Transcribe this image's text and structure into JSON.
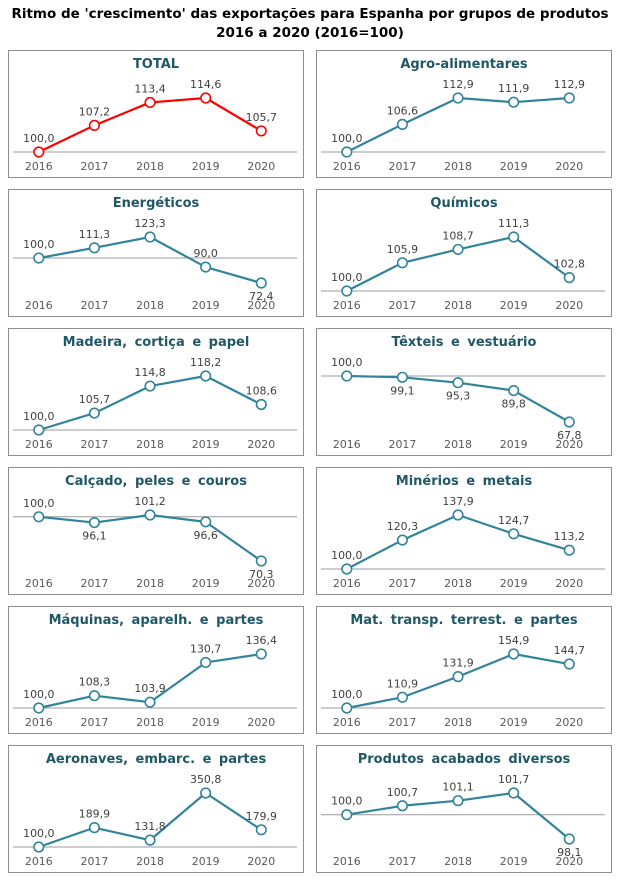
{
  "page_title": {
    "line1": "Ritmo de 'crescimento' das exportações para Espanha por grupos de produtos",
    "line2": "2016 a 2020 (2016=100)"
  },
  "colors": {
    "total_line": "#ff0000",
    "series_line": "#31849b",
    "marker_fill": "#ffffff",
    "chart_title": "#205867",
    "data_label": "#3f3f3f",
    "axis_label": "#595959",
    "axis_line": "#9b9b9b",
    "card_border": "#8e8e8e"
  },
  "x_axis_years": [
    "2016",
    "2017",
    "2018",
    "2019",
    "2020"
  ],
  "baseline_value": 100,
  "chart_data": [
    {
      "id": "total",
      "type": "line",
      "title": "TOTAL",
      "line_color": "#ff0000",
      "categories": [
        "2016",
        "2017",
        "2018",
        "2019",
        "2020"
      ],
      "values": [
        100.0,
        107.2,
        113.4,
        114.6,
        105.7
      ],
      "labels": [
        "100,0",
        "107,2",
        "113,4",
        "114,6",
        "105,7"
      ],
      "label_positions": [
        "above",
        "above",
        "above",
        "above",
        "above"
      ],
      "baseline": 100
    },
    {
      "id": "agro-alimentares",
      "type": "line",
      "title": "Agro-alimentares",
      "line_color": "#31849b",
      "categories": [
        "2016",
        "2017",
        "2018",
        "2019",
        "2020"
      ],
      "values": [
        100.0,
        106.6,
        112.9,
        111.9,
        112.9
      ],
      "labels": [
        "100,0",
        "106,6",
        "112,9",
        "111,9",
        "112,9"
      ],
      "label_positions": [
        "above",
        "above",
        "above",
        "above",
        "above"
      ],
      "baseline": 100
    },
    {
      "id": "energeticos",
      "type": "line",
      "title": "Energéticos",
      "line_color": "#31849b",
      "categories": [
        "2016",
        "2017",
        "2018",
        "2019",
        "2020"
      ],
      "values": [
        100.0,
        111.3,
        123.3,
        90.0,
        72.4
      ],
      "labels": [
        "100,0",
        "111,3",
        "123,3",
        "90,0",
        "72,4"
      ],
      "label_positions": [
        "above",
        "above",
        "above",
        "above",
        "below"
      ],
      "baseline": 100
    },
    {
      "id": "quimicos",
      "type": "line",
      "title": "Químicos",
      "line_color": "#31849b",
      "categories": [
        "2016",
        "2017",
        "2018",
        "2019",
        "2020"
      ],
      "values": [
        100.0,
        105.9,
        108.7,
        111.3,
        102.8
      ],
      "labels": [
        "100,0",
        "105,9",
        "108,7",
        "111,3",
        "102,8"
      ],
      "label_positions": [
        "above",
        "above",
        "above",
        "above",
        "above"
      ],
      "baseline": 100
    },
    {
      "id": "madeira-cortica-papel",
      "type": "line",
      "title": "Madeira, cortiça e papel",
      "line_color": "#31849b",
      "categories": [
        "2016",
        "2017",
        "2018",
        "2019",
        "2020"
      ],
      "values": [
        100.0,
        105.7,
        114.8,
        118.2,
        108.6
      ],
      "labels": [
        "100,0",
        "105,7",
        "114,8",
        "118,2",
        "108,6"
      ],
      "label_positions": [
        "above",
        "above",
        "above",
        "above",
        "above"
      ],
      "baseline": 100
    },
    {
      "id": "texteis-vestuario",
      "type": "line",
      "title": "Têxteis e vestuário",
      "line_color": "#31849b",
      "categories": [
        "2016",
        "2017",
        "2018",
        "2019",
        "2020"
      ],
      "values": [
        100.0,
        99.1,
        95.3,
        89.8,
        67.8
      ],
      "labels": [
        "100,0",
        "99,1",
        "95,3",
        "89,8",
        "67,8"
      ],
      "label_positions": [
        "above",
        "below",
        "below",
        "below",
        "below"
      ],
      "baseline": 100
    },
    {
      "id": "calcado-peles-couros",
      "type": "line",
      "title": "Calçado, peles e couros",
      "line_color": "#31849b",
      "categories": [
        "2016",
        "2017",
        "2018",
        "2019",
        "2020"
      ],
      "values": [
        100.0,
        96.1,
        101.2,
        96.6,
        70.3
      ],
      "labels": [
        "100,0",
        "96,1",
        "101,2",
        "96,6",
        "70,3"
      ],
      "label_positions": [
        "above",
        "below",
        "above",
        "below",
        "below"
      ],
      "baseline": 100
    },
    {
      "id": "minerios-metais",
      "type": "line",
      "title": "Minérios e metais",
      "line_color": "#31849b",
      "categories": [
        "2016",
        "2017",
        "2018",
        "2019",
        "2020"
      ],
      "values": [
        100.0,
        120.3,
        137.9,
        124.7,
        113.2
      ],
      "labels": [
        "100,0",
        "120,3",
        "137,9",
        "124,7",
        "113,2"
      ],
      "label_positions": [
        "above",
        "above",
        "above",
        "above",
        "above"
      ],
      "baseline": 100
    },
    {
      "id": "maquinas-aparelh-partes",
      "type": "line",
      "title": "Máquinas, aparelh. e partes",
      "line_color": "#31849b",
      "categories": [
        "2016",
        "2017",
        "2018",
        "2019",
        "2020"
      ],
      "values": [
        100.0,
        108.3,
        103.9,
        130.7,
        136.4
      ],
      "labels": [
        "100,0",
        "108,3",
        "103,9",
        "130,7",
        "136,4"
      ],
      "label_positions": [
        "above",
        "above",
        "above",
        "above",
        "above"
      ],
      "baseline": 100
    },
    {
      "id": "mat-transp-terrest-partes",
      "type": "line",
      "title": "Mat. transp. terrest. e partes",
      "line_color": "#31849b",
      "categories": [
        "2016",
        "2017",
        "2018",
        "2019",
        "2020"
      ],
      "values": [
        100.0,
        110.9,
        131.9,
        154.9,
        144.7
      ],
      "labels": [
        "100,0",
        "110,9",
        "131,9",
        "154,9",
        "144,7"
      ],
      "label_positions": [
        "above",
        "above",
        "above",
        "above",
        "above"
      ],
      "baseline": 100
    },
    {
      "id": "aeronaves-embarc-partes",
      "type": "line",
      "title": "Aeronaves, embarc. e partes",
      "line_color": "#31849b",
      "categories": [
        "2016",
        "2017",
        "2018",
        "2019",
        "2020"
      ],
      "values": [
        100.0,
        189.9,
        131.8,
        350.8,
        179.9
      ],
      "labels": [
        "100,0",
        "189,9",
        "131,8",
        "350,8",
        "179,9"
      ],
      "label_positions": [
        "above",
        "above",
        "above",
        "above",
        "above"
      ],
      "baseline": 100
    },
    {
      "id": "produtos-acabados-diversos",
      "type": "line",
      "title": "Produtos acabados diversos",
      "line_color": "#31849b",
      "categories": [
        "2016",
        "2017",
        "2018",
        "2019",
        "2020"
      ],
      "values": [
        100.0,
        100.7,
        101.1,
        101.7,
        98.1
      ],
      "labels": [
        "100,0",
        "100,7",
        "101,1",
        "101,7",
        "98,1"
      ],
      "label_positions": [
        "above",
        "above",
        "above",
        "above",
        "below"
      ],
      "baseline": 100
    }
  ]
}
